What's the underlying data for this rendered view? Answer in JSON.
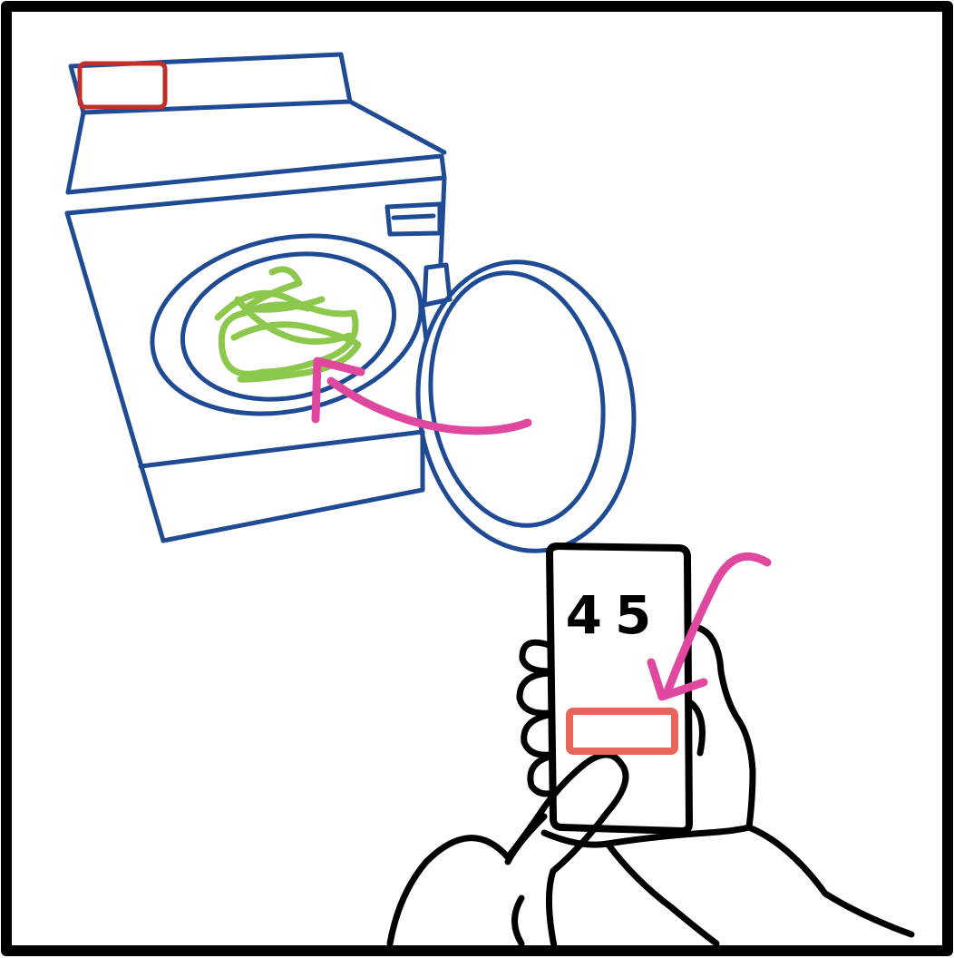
{
  "illustration": {
    "subject": "washing-machine-with-phone",
    "phone_display_value": "45",
    "colors": {
      "frame": "#000000",
      "machine": "#1f4a94",
      "laundry": "#8cc84b",
      "arrow": "#e0479e",
      "control_panel_highlight": "#c0302b",
      "phone_button_highlight": "#e8655a",
      "hand_outline": "#000000"
    },
    "icons": {
      "machine": "washing-machine-icon",
      "laundry": "laundry-icon",
      "phone": "phone-icon",
      "hand": "hand-icon",
      "arrow_to_drum": "curved-arrow-icon",
      "arrow_to_button": "check-arrow-icon"
    }
  }
}
